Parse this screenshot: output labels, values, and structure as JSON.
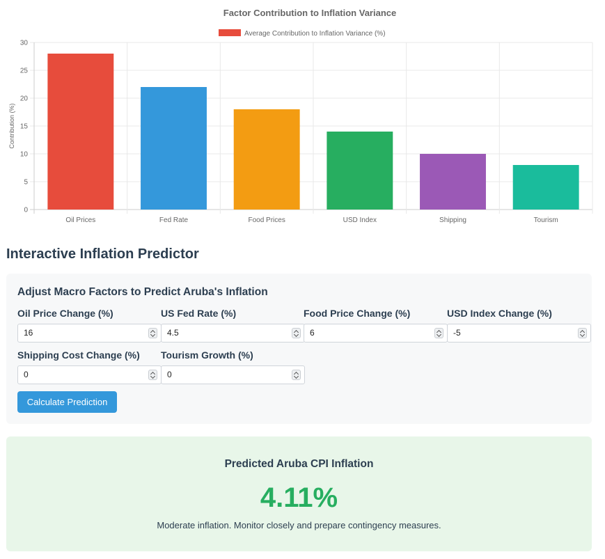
{
  "chart_data": {
    "type": "bar",
    "title": "Factor Contribution to Inflation Variance",
    "ylabel": "Contribution (%)",
    "xlabel": "",
    "ylim": [
      0,
      30
    ],
    "yticks": [
      0,
      5,
      10,
      15,
      20,
      25,
      30
    ],
    "grid": true,
    "legend_position": "top",
    "categories": [
      "Oil Prices",
      "Fed Rate",
      "Food Prices",
      "USD Index",
      "Shipping",
      "Tourism"
    ],
    "series": [
      {
        "name": "Average Contribution to Inflation Variance (%)",
        "values": [
          28,
          22,
          18,
          14,
          10,
          8
        ],
        "colors": [
          "#e74c3c",
          "#3498db",
          "#f39c12",
          "#27ae60",
          "#9b59b6",
          "#1abc9c"
        ]
      }
    ]
  },
  "predictor": {
    "section_title": "Interactive Inflation Predictor",
    "panel_title": "Adjust Macro Factors to Predict Aruba's Inflation",
    "fields": [
      {
        "label": "Oil Price Change (%)",
        "value": "16"
      },
      {
        "label": "US Fed Rate (%)",
        "value": "4.5"
      },
      {
        "label": "Food Price Change (%)",
        "value": "6"
      },
      {
        "label": "USD Index Change (%)",
        "value": "-5"
      },
      {
        "label": "Shipping Cost Change (%)",
        "value": "0"
      },
      {
        "label": "Tourism Growth (%)",
        "value": "0"
      }
    ],
    "button_label": "Calculate Prediction"
  },
  "result": {
    "title": "Predicted Aruba CPI Inflation",
    "value": "4.11%",
    "message": "Moderate inflation. Monitor closely and prepare contingency measures."
  }
}
